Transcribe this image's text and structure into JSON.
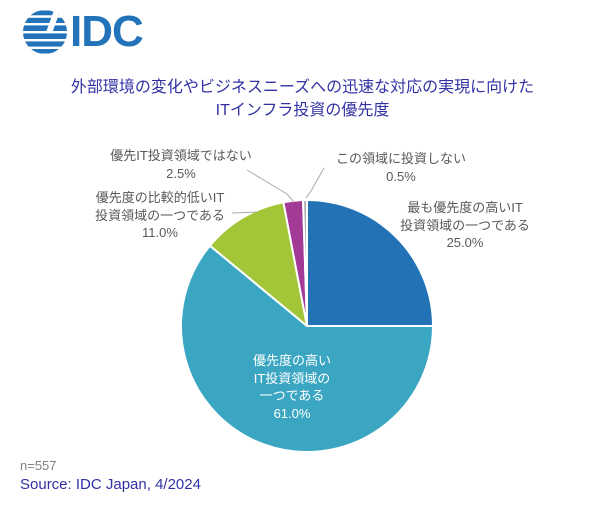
{
  "logo": {
    "text": "IDC",
    "color": "#2273B9"
  },
  "title": {
    "line1": "外部環境の変化やビジネスニーズへの迅速な対応の実現に向けた",
    "line2": "ITインフラ投資の優先度",
    "color": "#3232A5"
  },
  "chart_data": {
    "type": "pie",
    "title": "外部環境の変化やビジネスニーズへの迅速な対応の実現に向けた ITインフラ投資の優先度",
    "unit": "%",
    "start_angle_deg": 0,
    "direction": "clockwise",
    "legend_position": "none",
    "slices": [
      {
        "label": "最も優先度の高いIT投資領域の一つである",
        "value": 25.0,
        "color": "#2272B5"
      },
      {
        "label": "優先度の高いIT投資領域の一つである",
        "value": 61.0,
        "color": "#3AA6C2"
      },
      {
        "label": "優先度の比較的低いIT投資領域の一つである",
        "value": 11.0,
        "color": "#A2C637"
      },
      {
        "label": "優先IT投資領域ではない",
        "value": 2.5,
        "color": "#A23A96"
      },
      {
        "label": "この領域に投資しない",
        "value": 0.5,
        "color": "#ADB1B6"
      }
    ],
    "labels": {
      "not_priority": "優先IT投資領域ではない\n2.5%",
      "low_priority": "優先度の比較的低いIT\n投資領域の一つである\n11.0%",
      "no_invest": "この領域に投資しない\n0.5%",
      "top_priority": "最も優先度の高いIT\n投資領域の一つである\n25.0%",
      "high_priority": "優先度の高い\nIT投資領域の\n一つである\n61.0%"
    }
  },
  "footer": {
    "n": "n=557",
    "source": "Source: IDC Japan, 4/2024"
  }
}
